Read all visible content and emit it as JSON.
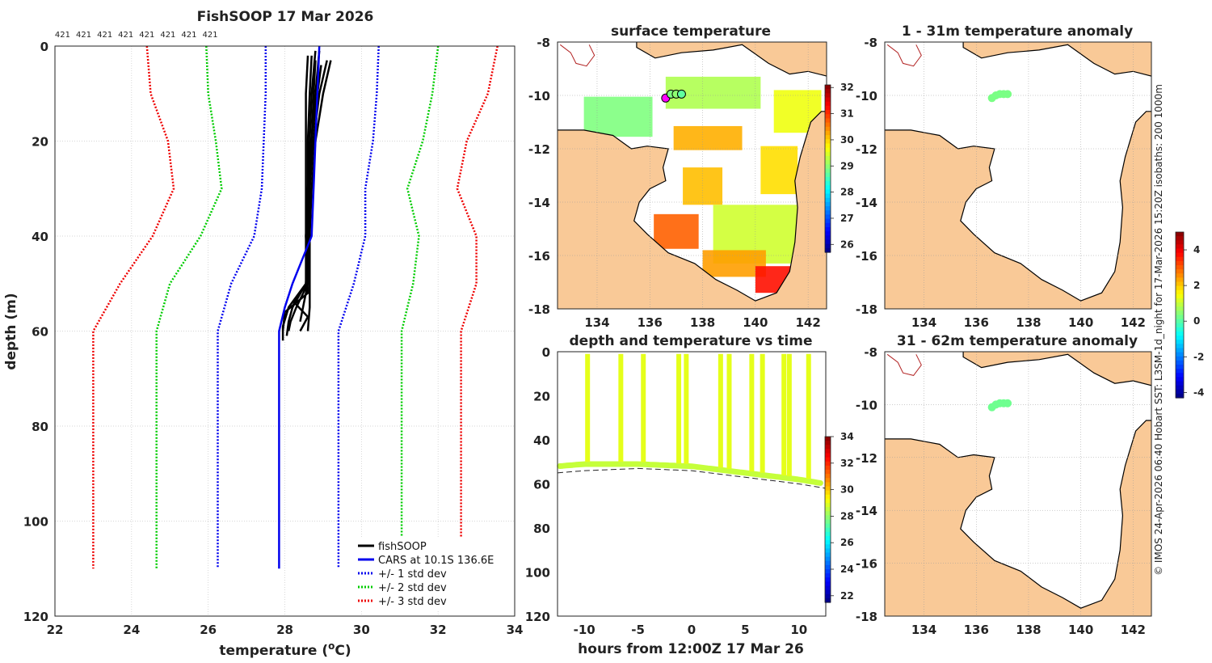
{
  "chart_data": [
    {
      "id": "profile",
      "type": "line",
      "title": "FishSOOP 17 Mar 2026",
      "xlabel": "temperature (",
      "xlabel_sup": "o",
      "xlabel_tail": "C)",
      "ylabel": "depth (m)",
      "xlim": [
        22,
        34
      ],
      "ylim": [
        0,
        120
      ],
      "y_inverted": true,
      "grid": true,
      "xticks": [
        "22",
        "24",
        "26",
        "28",
        "30",
        "32",
        "34"
      ],
      "yticks": [
        "0",
        "20",
        "40",
        "60",
        "80",
        "100",
        "120"
      ],
      "count_labels": [
        "421",
        "421",
        "421",
        "421",
        "421",
        "421",
        "421",
        "421"
      ],
      "count_positions": [
        22.2,
        22.75,
        23.3,
        23.85,
        24.4,
        24.95,
        25.5,
        26.05
      ],
      "legend_position": "bottom-right",
      "series": [
        {
          "name": "fishSOOP",
          "style": "solid",
          "color": "#000000",
          "profiles": [
            {
              "depth": [
                3,
                10,
                20,
                30,
                40,
                50,
                55,
                58,
                61
              ],
              "temp": [
                28.8,
                28.75,
                28.7,
                28.65,
                28.6,
                28.55,
                28.2,
                28.1,
                28.05
              ]
            },
            {
              "depth": [
                2,
                10,
                20,
                30,
                40,
                50,
                55,
                59,
                60
              ],
              "temp": [
                28.7,
                28.65,
                28.6,
                28.6,
                28.6,
                28.55,
                28.1,
                27.95,
                27.95
              ]
            },
            {
              "depth": [
                1,
                10,
                20,
                30,
                40,
                52,
                56,
                60,
                62
              ],
              "temp": [
                28.9,
                28.8,
                28.7,
                28.6,
                28.55,
                28.6,
                28.0,
                27.95,
                27.95
              ]
            },
            {
              "depth": [
                3,
                10,
                20,
                30,
                40,
                50,
                53,
                55
              ],
              "temp": [
                29.1,
                28.9,
                28.75,
                28.65,
                28.6,
                28.6,
                28.3,
                28.2
              ]
            },
            {
              "depth": [
                2,
                10,
                20,
                30,
                40,
                50,
                55,
                58,
                60
              ],
              "temp": [
                28.6,
                28.55,
                28.55,
                28.55,
                28.55,
                28.6,
                28.3,
                28.15,
                28.1
              ]
            },
            {
              "depth": [
                4,
                10,
                20,
                30,
                40,
                50,
                54,
                58
              ],
              "temp": [
                28.95,
                28.85,
                28.7,
                28.65,
                28.6,
                28.6,
                28.5,
                28.4
              ]
            },
            {
              "depth": [
                1,
                10,
                20,
                30,
                40,
                50,
                54,
                57,
                60
              ],
              "temp": [
                28.8,
                28.7,
                28.65,
                28.6,
                28.55,
                28.55,
                28.25,
                28.6,
                28.4
              ]
            },
            {
              "depth": [
                3,
                10,
                20,
                30,
                40,
                50,
                55,
                60
              ],
              "temp": [
                29.2,
                29.0,
                28.8,
                28.7,
                28.65,
                28.65,
                28.65,
                28.6
              ]
            }
          ]
        },
        {
          "name": "CARS at 10.1S 136.6E",
          "style": "solid",
          "color": "#0000ee",
          "depth": [
            0,
            10,
            20,
            30,
            40,
            50,
            55,
            60,
            110
          ],
          "temp": [
            28.9,
            28.85,
            28.8,
            28.75,
            28.7,
            28.2,
            28.0,
            27.85,
            27.85
          ]
        },
        {
          "name": "+/- 1 std dev",
          "style": "dotted",
          "color": "#0000ee",
          "depth": [
            0,
            10,
            20,
            30,
            40,
            50,
            60,
            110
          ],
          "lower": [
            27.5,
            27.5,
            27.45,
            27.4,
            27.2,
            26.6,
            26.25,
            26.25
          ],
          "upper": [
            30.45,
            30.4,
            30.3,
            30.1,
            30.1,
            29.8,
            29.4,
            29.4
          ]
        },
        {
          "name": "+/- 2 std dev",
          "style": "dotted",
          "color": "#00cc00",
          "depth": [
            0,
            10,
            20,
            30,
            40,
            50,
            60,
            110
          ],
          "lower": [
            25.95,
            26.0,
            26.2,
            26.35,
            25.8,
            25.0,
            24.65,
            24.65
          ],
          "upper": [
            32.0,
            31.85,
            31.6,
            31.2,
            31.5,
            31.35,
            31.05,
            31.05
          ]
        },
        {
          "name": "+/- 3 std dev",
          "style": "dotted",
          "color": "#ee0000",
          "depth": [
            0,
            10,
            20,
            30,
            40,
            50,
            60,
            110
          ],
          "lower": [
            24.4,
            24.5,
            24.95,
            25.1,
            24.55,
            23.7,
            23.0,
            23.0
          ],
          "upper": [
            33.55,
            33.3,
            32.75,
            32.5,
            33.0,
            33.0,
            32.6,
            32.6
          ]
        }
      ]
    },
    {
      "id": "surface",
      "type": "heatmap",
      "title": "surface temperature",
      "xlim": [
        132.5,
        142.7
      ],
      "ylim": [
        -18,
        -8
      ],
      "xticks": [
        "134",
        "136",
        "138",
        "140",
        "142"
      ],
      "yticks": [
        "-8",
        "-10",
        "-12",
        "-14",
        "-16",
        "-18"
      ],
      "colorbar": {
        "min": 25.7,
        "max": 32.1,
        "ticks": [
          "32",
          "31",
          "30",
          "29",
          "28",
          "27",
          "26"
        ]
      },
      "sst_patches": [
        {
          "lon": 134.8,
          "lat": -10.8,
          "w": 2.6,
          "h": 1.5,
          "value": 28.9
        },
        {
          "lon": 138.4,
          "lat": -9.9,
          "w": 3.6,
          "h": 1.2,
          "value": 29.2
        },
        {
          "lon": 141.6,
          "lat": -10.6,
          "w": 1.8,
          "h": 1.6,
          "value": 29.6
        },
        {
          "lon": 138.2,
          "lat": -11.6,
          "w": 2.6,
          "h": 0.9,
          "value": 30.2
        },
        {
          "lon": 140.9,
          "lat": -12.8,
          "w": 1.4,
          "h": 1.8,
          "value": 29.9
        },
        {
          "lon": 138.0,
          "lat": -13.4,
          "w": 1.5,
          "h": 1.4,
          "value": 30.1
        },
        {
          "lon": 140.2,
          "lat": -15.2,
          "w": 3.6,
          "h": 2.2,
          "value": 29.4
        },
        {
          "lon": 137.0,
          "lat": -15.1,
          "w": 1.7,
          "h": 1.3,
          "value": 30.7
        },
        {
          "lon": 139.2,
          "lat": -16.3,
          "w": 2.4,
          "h": 1.0,
          "value": 30.3
        },
        {
          "lon": 140.9,
          "lat": -16.9,
          "w": 1.8,
          "h": 1.0,
          "value": 31.2
        }
      ],
      "stations": [
        {
          "lon": 136.6,
          "lat": -10.1,
          "value": 28.6,
          "highlight": true
        },
        {
          "lon": 136.8,
          "lat": -9.95,
          "value": 28.9
        },
        {
          "lon": 137.0,
          "lat": -9.95,
          "value": 29.0
        },
        {
          "lon": 137.2,
          "lat": -9.95,
          "value": 28.7
        }
      ]
    },
    {
      "id": "timeseries",
      "type": "scatter",
      "title": "depth and temperature vs time",
      "xlabel": "hours from 12:00Z 17 Mar 26",
      "xlim": [
        -12.5,
        12.5
      ],
      "ylim": [
        0,
        120
      ],
      "y_inverted": true,
      "xticks": [
        "-10",
        "-5",
        "0",
        "5",
        "10"
      ],
      "yticks": [
        "0",
        "20",
        "40",
        "60",
        "80",
        "100",
        "120"
      ],
      "colorbar": {
        "min": 21.5,
        "max": 34.0,
        "ticks": [
          "34",
          "32",
          "30",
          "28",
          "26",
          "24",
          "22"
        ]
      },
      "profile_times": [
        -9.7,
        -6.6,
        -4.5,
        -1.2,
        -0.5,
        2.7,
        3.5,
        5.6,
        6.6,
        8.6,
        9.1,
        10.9
      ],
      "bottom_depth": {
        "hours": [
          -12.5,
          -10,
          -5,
          0,
          5,
          10,
          12.5
        ],
        "depth": [
          51,
          50,
          50,
          51,
          54,
          57,
          59
        ]
      },
      "seabed_depth": {
        "hours": [
          -12.5,
          -10,
          -5,
          0,
          5,
          10,
          12.5
        ],
        "depth": [
          55,
          54,
          53,
          54,
          57,
          60,
          62
        ]
      }
    },
    {
      "id": "anom1",
      "type": "heatmap",
      "title": "1 - 31m temperature anomaly",
      "xlim": [
        132.5,
        142.7
      ],
      "ylim": [
        -18,
        -8
      ],
      "xticks": [
        "134",
        "136",
        "138",
        "140",
        "142"
      ],
      "yticks": [
        "-8",
        "-10",
        "-12",
        "-14",
        "-16",
        "-18"
      ],
      "points": [
        {
          "lon": 136.6,
          "lat": -10.1
        },
        {
          "lon": 136.75,
          "lat": -10.0
        },
        {
          "lon": 136.9,
          "lat": -9.95
        },
        {
          "lon": 137.05,
          "lat": -9.95
        },
        {
          "lon": 137.2,
          "lat": -9.95
        }
      ],
      "anomaly": 0.3
    },
    {
      "id": "anom2",
      "type": "heatmap",
      "title": "31 - 62m temperature anomaly",
      "xlim": [
        132.5,
        142.7
      ],
      "ylim": [
        -18,
        -8
      ],
      "xticks": [
        "134",
        "136",
        "138",
        "140",
        "142"
      ],
      "yticks": [
        "-8",
        "-10",
        "-12",
        "-14",
        "-16",
        "-18"
      ],
      "points": [
        {
          "lon": 136.6,
          "lat": -10.1
        },
        {
          "lon": 136.75,
          "lat": -10.0
        },
        {
          "lon": 136.9,
          "lat": -9.95
        },
        {
          "lon": 137.05,
          "lat": -9.95
        },
        {
          "lon": 137.2,
          "lat": -9.95
        }
      ],
      "anomaly": 0.2
    }
  ],
  "anomaly_colorbar": {
    "min": -4.3,
    "max": 5.0,
    "ticks": [
      "4",
      "2",
      "0",
      "-2",
      "-4"
    ]
  },
  "side_note": "© IMOS 24-Apr-2026 06:40 Hobart SST: L3SM-1d_night for 17-Mar-2026 15:20Z isobaths: 200  1000m",
  "colors": {
    "land": "#f9c997",
    "coast": "#000000",
    "png_coast": "#b22222",
    "grid": "#c8c8c8",
    "highlight": "#ff00ff"
  }
}
